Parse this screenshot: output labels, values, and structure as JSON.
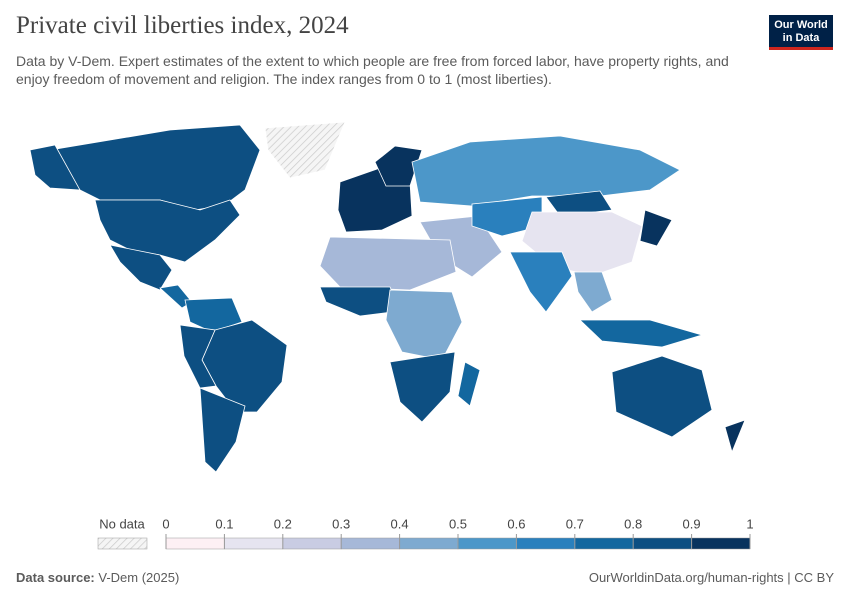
{
  "header": {
    "title": "Private civil liberties index, 2024",
    "subtitle": "Data by V-Dem. Expert estimates of the extent to which people are free from forced labor, have property rights, and enjoy freedom of movement and religion. The index ranges from 0 to 1 (most liberties).",
    "logo": [
      "Our World",
      "in Data"
    ]
  },
  "chart_data": {
    "type": "choropleth",
    "values": [
      0.85,
      0.83,
      0.83,
      null,
      0.8,
      0.75,
      0.7,
      0.85,
      0.82,
      0.85,
      0.9,
      0.92,
      0.5,
      0.3,
      0.65,
      0.85,
      0.1,
      0.65,
      0.45,
      0.92,
      0.7,
      0.3,
      0.8,
      0.45,
      0.85,
      0.75,
      0.85,
      0.9
    ],
    "legend": {
      "no_data_label": "No data",
      "ticks": [
        0,
        0.1,
        0.2,
        0.3,
        0.4,
        0.5,
        0.6,
        0.7,
        0.8,
        0.9,
        1
      ],
      "colors": [
        "#fdf0f4",
        "#e6e4f0",
        "#c9cce3",
        "#a6b8d8",
        "#7eaad0",
        "#4c97c9",
        "#2a80bd",
        "#13679f",
        "#0d4f82",
        "#08335e"
      ]
    }
  },
  "footer": {
    "source_label": "Data source:",
    "source": "V-Dem (2025)",
    "url": "OurWorldinData.org/human-rights | CC BY"
  }
}
